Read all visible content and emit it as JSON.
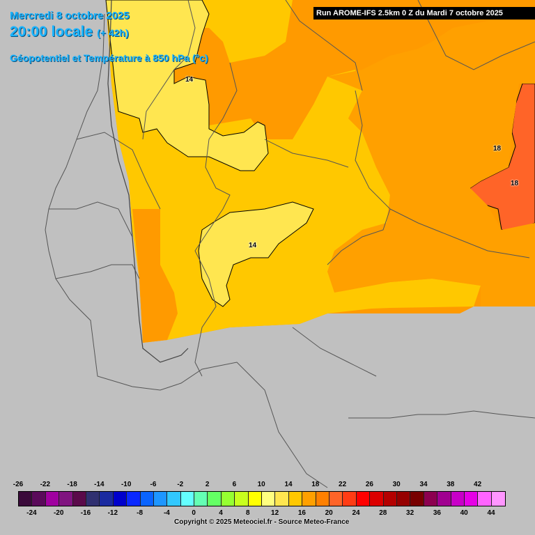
{
  "header": {
    "date_line": "Mercredi 8 octobre 2025",
    "time_line": "20:00 locale",
    "lead_time": "(+ 42h)",
    "parameter": "Géopotentiel et Température à 850 hPa (°c)",
    "run_info": "Run AROME-IFS 2.5km 0 Z du Mardi 7 octobre 2025"
  },
  "isotherm_labels": {
    "label_a": "14",
    "label_b": "14",
    "label_c": "18",
    "label_d": "18"
  },
  "legend": {
    "top_ticks": [
      "-26",
      "-22",
      "-18",
      "-14",
      "-10",
      "-6",
      "-2",
      "2",
      "6",
      "10",
      "14",
      "18",
      "22",
      "26",
      "30",
      "34",
      "38",
      "42"
    ],
    "bottom_ticks": [
      "-24",
      "-20",
      "-16",
      "-12",
      "-8",
      "-4",
      "0",
      "4",
      "8",
      "12",
      "16",
      "20",
      "24",
      "28",
      "32",
      "36",
      "40",
      "44"
    ],
    "colors": [
      "#3a0a3a",
      "#5a0a5a",
      "#a000a0",
      "#801480",
      "#5a0a4a",
      "#303070",
      "#1a2aa0",
      "#0000cc",
      "#0a28ff",
      "#0a64ff",
      "#1e96ff",
      "#32c8ff",
      "#64ffff",
      "#64ffb4",
      "#64ff64",
      "#96ff32",
      "#c8ff1e",
      "#ffff00",
      "#ffff80",
      "#ffe650",
      "#ffc800",
      "#ffa000",
      "#ff8000",
      "#ff6428",
      "#ff3c14",
      "#ff0000",
      "#dc0000",
      "#b40000",
      "#960000",
      "#780000",
      "#8c0050",
      "#a00090",
      "#c800c8",
      "#e600e6",
      "#ff64ff",
      "#ff96ff"
    ]
  },
  "copyright": "Copyright © 2025 Meteociel.fr - Source Meteo-France"
}
